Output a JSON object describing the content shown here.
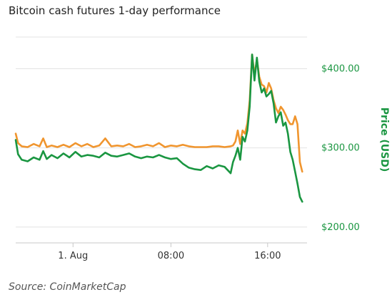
{
  "chart_data": {
    "type": "line",
    "title": "Bitcoin cash futures 1-day performance",
    "source": "Source: CoinMarketCap",
    "ylabel": "Price (USD)",
    "ylim": [
      180,
      440
    ],
    "yticks": [
      {
        "value": 200,
        "label": "$200.00"
      },
      {
        "value": 300,
        "label": "$300.00"
      },
      {
        "value": 400,
        "label": "$400.00"
      }
    ],
    "xlim": [
      0,
      24.4
    ],
    "xticks": [
      {
        "value": 4.8,
        "label": "1. Aug"
      },
      {
        "value": 13.0,
        "label": "08:00"
      },
      {
        "value": 21.1,
        "label": "16:00"
      }
    ],
    "grid": true,
    "accent_color": "#1a9641",
    "series": [
      {
        "color": "#f0952e",
        "x": [
          0,
          0.2,
          0.5,
          1.0,
          1.5,
          2.0,
          2.3,
          2.6,
          3.0,
          3.5,
          4.0,
          4.5,
          5.0,
          5.5,
          6.0,
          6.5,
          7.0,
          7.5,
          8.0,
          8.5,
          9.0,
          9.5,
          10.0,
          10.5,
          11.0,
          11.5,
          12.0,
          12.5,
          13.0,
          13.5,
          14.0,
          14.5,
          15.0,
          15.5,
          16.0,
          16.5,
          17.0,
          17.5,
          18.0,
          18.2,
          18.4,
          18.6,
          18.8,
          19.0,
          19.2,
          19.4,
          19.6,
          19.8,
          20.0,
          20.2,
          20.4,
          20.6,
          20.8,
          21.0,
          21.2,
          21.4,
          21.6,
          21.8,
          22.0,
          22.2,
          22.4,
          22.6,
          22.8,
          23.0,
          23.2,
          23.4,
          23.6,
          23.8,
          24.0
        ],
        "values": [
          318,
          306,
          302,
          301,
          305,
          302,
          312,
          301,
          303,
          301,
          304,
          301,
          306,
          302,
          305,
          301,
          303,
          312,
          302,
          303,
          302,
          305,
          301,
          302,
          304,
          302,
          306,
          301,
          303,
          302,
          304,
          302,
          301,
          301,
          301,
          302,
          302,
          301,
          302,
          303,
          308,
          322,
          305,
          322,
          318,
          331,
          360,
          418,
          392,
          412,
          390,
          380,
          378,
          370,
          382,
          375,
          360,
          350,
          344,
          352,
          348,
          342,
          335,
          330,
          330,
          340,
          330,
          282,
          270
        ]
      },
      {
        "color": "#1a9641",
        "x": [
          0,
          0.2,
          0.5,
          1.0,
          1.5,
          2.0,
          2.3,
          2.6,
          3.0,
          3.5,
          4.0,
          4.5,
          5.0,
          5.5,
          6.0,
          6.5,
          7.0,
          7.5,
          8.0,
          8.5,
          9.0,
          9.5,
          10.0,
          10.5,
          11.0,
          11.5,
          12.0,
          12.5,
          13.0,
          13.5,
          14.0,
          14.5,
          15.0,
          15.5,
          16.0,
          16.5,
          17.0,
          17.5,
          18.0,
          18.2,
          18.4,
          18.6,
          18.8,
          19.0,
          19.2,
          19.4,
          19.6,
          19.8,
          20.0,
          20.2,
          20.4,
          20.6,
          20.8,
          21.0,
          21.2,
          21.4,
          21.6,
          21.8,
          22.0,
          22.2,
          22.4,
          22.6,
          22.8,
          23.0,
          23.2,
          23.4,
          23.6,
          23.8,
          24.0
        ],
        "values": [
          310,
          292,
          285,
          283,
          288,
          285,
          296,
          286,
          291,
          287,
          293,
          288,
          295,
          289,
          291,
          290,
          288,
          294,
          290,
          289,
          291,
          293,
          289,
          287,
          289,
          288,
          291,
          288,
          286,
          287,
          280,
          275,
          273,
          272,
          277,
          274,
          278,
          276,
          268,
          282,
          290,
          300,
          285,
          314,
          308,
          322,
          352,
          418,
          385,
          414,
          384,
          370,
          375,
          365,
          368,
          372,
          356,
          332,
          340,
          345,
          328,
          332,
          318,
          295,
          285,
          270,
          255,
          238,
          232
        ]
      }
    ]
  }
}
